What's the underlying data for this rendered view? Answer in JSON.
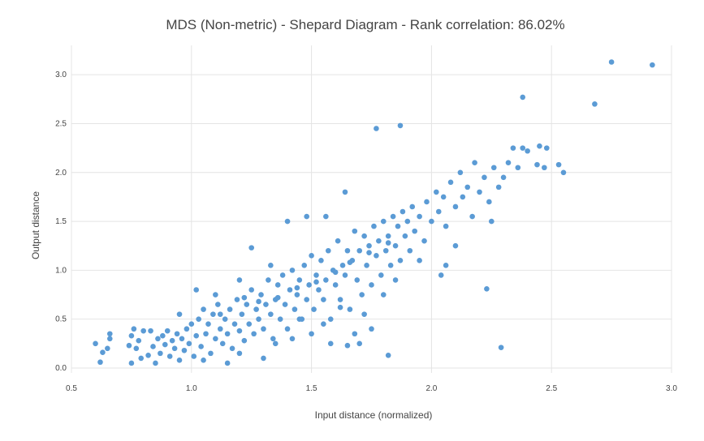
{
  "chart_data": {
    "type": "scatter",
    "title": "MDS (Non-metric) - Shepard Diagram - Rank correlation: 86.02%",
    "xlabel": "Input distance (normalized)",
    "ylabel": "Output distance",
    "xlim": [
      0.5,
      3.0
    ],
    "ylim": [
      -0.05,
      3.3
    ],
    "xticks": [
      "0.5",
      "1.0",
      "1.5",
      "2.0",
      "2.5",
      "3.0"
    ],
    "yticks": [
      "0.0",
      "0.5",
      "1.0",
      "1.5",
      "2.0",
      "2.5",
      "3.0"
    ],
    "grid": true,
    "legend": "none",
    "marker_color": "#5b9bd5",
    "points": [
      [
        0.6,
        0.25
      ],
      [
        0.62,
        0.06
      ],
      [
        0.63,
        0.16
      ],
      [
        0.65,
        0.2
      ],
      [
        0.66,
        0.3
      ],
      [
        0.66,
        0.35
      ],
      [
        0.74,
        0.23
      ],
      [
        0.75,
        0.05
      ],
      [
        0.75,
        0.33
      ],
      [
        0.76,
        0.4
      ],
      [
        0.77,
        0.2
      ],
      [
        0.78,
        0.28
      ],
      [
        0.79,
        0.1
      ],
      [
        0.8,
        0.38
      ],
      [
        0.82,
        0.13
      ],
      [
        0.83,
        0.38
      ],
      [
        0.84,
        0.22
      ],
      [
        0.85,
        0.05
      ],
      [
        0.86,
        0.3
      ],
      [
        0.87,
        0.15
      ],
      [
        0.88,
        0.33
      ],
      [
        0.89,
        0.24
      ],
      [
        0.9,
        0.38
      ],
      [
        0.91,
        0.12
      ],
      [
        0.92,
        0.28
      ],
      [
        0.93,
        0.2
      ],
      [
        0.94,
        0.35
      ],
      [
        0.95,
        0.08
      ],
      [
        0.96,
        0.3
      ],
      [
        0.97,
        0.18
      ],
      [
        0.98,
        0.4
      ],
      [
        0.99,
        0.25
      ],
      [
        1.0,
        0.45
      ],
      [
        1.01,
        0.12
      ],
      [
        1.02,
        0.33
      ],
      [
        1.03,
        0.5
      ],
      [
        1.04,
        0.22
      ],
      [
        1.05,
        0.6
      ],
      [
        1.06,
        0.35
      ],
      [
        1.07,
        0.45
      ],
      [
        1.08,
        0.15
      ],
      [
        1.09,
        0.55
      ],
      [
        1.1,
        0.3
      ],
      [
        1.11,
        0.65
      ],
      [
        1.12,
        0.4
      ],
      [
        1.13,
        0.25
      ],
      [
        1.14,
        0.5
      ],
      [
        1.15,
        0.35
      ],
      [
        1.16,
        0.6
      ],
      [
        1.17,
        0.2
      ],
      [
        1.18,
        0.45
      ],
      [
        1.19,
        0.7
      ],
      [
        1.2,
        0.38
      ],
      [
        1.21,
        0.55
      ],
      [
        1.22,
        0.28
      ],
      [
        1.23,
        0.65
      ],
      [
        1.24,
        0.45
      ],
      [
        1.25,
        0.8
      ],
      [
        1.26,
        0.35
      ],
      [
        1.27,
        0.6
      ],
      [
        1.28,
        0.5
      ],
      [
        1.29,
        0.75
      ],
      [
        1.3,
        0.4
      ],
      [
        1.31,
        0.65
      ],
      [
        1.32,
        0.9
      ],
      [
        1.33,
        0.55
      ],
      [
        1.34,
        0.3
      ],
      [
        1.35,
        0.7
      ],
      [
        1.36,
        0.85
      ],
      [
        1.37,
        0.5
      ],
      [
        1.38,
        0.95
      ],
      [
        1.39,
        0.65
      ],
      [
        1.4,
        0.4
      ],
      [
        1.41,
        0.8
      ],
      [
        1.42,
        1.0
      ],
      [
        1.43,
        0.6
      ],
      [
        1.44,
        0.75
      ],
      [
        1.45,
        0.9
      ],
      [
        1.46,
        0.5
      ],
      [
        1.47,
        1.05
      ],
      [
        1.48,
        0.7
      ],
      [
        1.49,
        0.85
      ],
      [
        1.5,
        1.15
      ],
      [
        1.51,
        0.6
      ],
      [
        1.52,
        0.95
      ],
      [
        1.53,
        0.8
      ],
      [
        1.54,
        1.1
      ],
      [
        1.55,
        0.7
      ],
      [
        1.56,
        0.9
      ],
      [
        1.57,
        1.2
      ],
      [
        1.58,
        0.5
      ],
      [
        1.59,
        1.0
      ],
      [
        1.6,
        0.85
      ],
      [
        1.61,
        1.3
      ],
      [
        1.62,
        0.7
      ],
      [
        1.63,
        1.05
      ],
      [
        1.64,
        0.95
      ],
      [
        1.65,
        1.2
      ],
      [
        1.66,
        0.6
      ],
      [
        1.67,
        1.1
      ],
      [
        1.68,
        1.4
      ],
      [
        1.69,
        0.9
      ],
      [
        1.7,
        1.2
      ],
      [
        1.71,
        0.75
      ],
      [
        1.72,
        1.35
      ],
      [
        1.73,
        1.05
      ],
      [
        1.74,
        1.25
      ],
      [
        1.75,
        0.85
      ],
      [
        1.76,
        1.45
      ],
      [
        1.77,
        1.15
      ],
      [
        1.78,
        1.3
      ],
      [
        1.79,
        0.95
      ],
      [
        1.8,
        1.5
      ],
      [
        1.81,
        1.2
      ],
      [
        1.82,
        1.35
      ],
      [
        1.83,
        1.05
      ],
      [
        1.84,
        1.55
      ],
      [
        1.85,
        1.25
      ],
      [
        1.86,
        1.45
      ],
      [
        1.87,
        1.1
      ],
      [
        1.88,
        1.6
      ],
      [
        1.89,
        1.35
      ],
      [
        1.9,
        1.5
      ],
      [
        1.91,
        1.2
      ],
      [
        1.92,
        1.65
      ],
      [
        1.93,
        1.4
      ],
      [
        1.95,
        1.55
      ],
      [
        1.97,
        1.3
      ],
      [
        1.98,
        1.7
      ],
      [
        2.0,
        1.5
      ],
      [
        2.02,
        1.8
      ],
      [
        2.03,
        1.6
      ],
      [
        2.05,
        1.75
      ],
      [
        2.06,
        1.45
      ],
      [
        2.08,
        1.9
      ],
      [
        2.1,
        1.65
      ],
      [
        2.12,
        2.0
      ],
      [
        2.13,
        1.75
      ],
      [
        2.15,
        1.85
      ],
      [
        2.17,
        1.55
      ],
      [
        2.18,
        2.1
      ],
      [
        2.2,
        1.8
      ],
      [
        2.22,
        1.95
      ],
      [
        2.24,
        1.7
      ],
      [
        2.26,
        2.05
      ],
      [
        2.28,
        1.85
      ],
      [
        2.3,
        1.95
      ],
      [
        2.32,
        2.1
      ],
      [
        2.34,
        2.25
      ],
      [
        2.36,
        2.05
      ],
      [
        2.38,
        2.25
      ],
      [
        2.4,
        2.22
      ],
      [
        2.44,
        2.08
      ],
      [
        2.45,
        2.27
      ],
      [
        2.47,
        2.05
      ],
      [
        2.48,
        2.25
      ],
      [
        2.53,
        2.08
      ],
      [
        1.4,
        1.5
      ],
      [
        1.48,
        1.55
      ],
      [
        1.56,
        1.55
      ],
      [
        1.64,
        1.8
      ],
      [
        1.25,
        1.23
      ],
      [
        1.33,
        1.05
      ],
      [
        1.2,
        0.9
      ],
      [
        1.1,
        0.75
      ],
      [
        1.58,
        0.25
      ],
      [
        1.65,
        0.23
      ],
      [
        1.7,
        0.25
      ],
      [
        1.75,
        0.4
      ],
      [
        1.82,
        0.13
      ],
      [
        1.5,
        0.35
      ],
      [
        1.45,
        0.5
      ],
      [
        1.68,
        0.35
      ],
      [
        2.04,
        0.95
      ],
      [
        2.06,
        1.05
      ],
      [
        2.23,
        0.81
      ],
      [
        2.29,
        0.21
      ],
      [
        1.77,
        2.45
      ],
      [
        1.87,
        2.48
      ],
      [
        2.38,
        2.77
      ],
      [
        2.68,
        2.7
      ],
      [
        2.75,
        3.13
      ],
      [
        2.92,
        3.1
      ],
      [
        2.55,
        2.0
      ],
      [
        2.25,
        1.5
      ],
      [
        2.1,
        1.25
      ],
      [
        1.95,
        1.1
      ],
      [
        1.85,
        0.9
      ],
      [
        1.8,
        0.75
      ],
      [
        1.72,
        0.55
      ],
      [
        1.02,
        0.8
      ],
      [
        0.95,
        0.55
      ],
      [
        1.05,
        0.08
      ],
      [
        1.15,
        0.05
      ],
      [
        1.2,
        0.15
      ],
      [
        1.3,
        0.1
      ],
      [
        1.35,
        0.25
      ],
      [
        1.42,
        0.3
      ],
      [
        1.55,
        0.45
      ],
      [
        1.62,
        0.62
      ],
      [
        1.12,
        0.55
      ],
      [
        1.22,
        0.72
      ],
      [
        1.28,
        0.68
      ],
      [
        1.36,
        0.72
      ],
      [
        1.44,
        0.82
      ],
      [
        1.52,
        0.88
      ],
      [
        1.6,
        0.98
      ],
      [
        1.66,
        1.08
      ],
      [
        1.74,
        1.18
      ],
      [
        1.82,
        1.28
      ]
    ]
  }
}
